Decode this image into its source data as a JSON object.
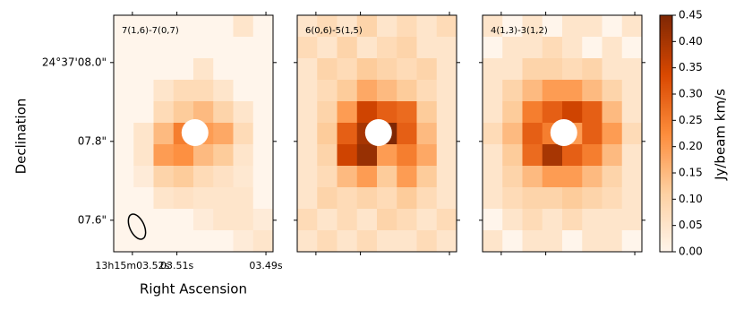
{
  "chart_data": {
    "type": "heatmap",
    "ylabel": "Declination",
    "xlabel": "Right Ascension",
    "xlim": [
      3.5242,
      3.4884
    ],
    "xticks": [
      {
        "value": 3.52,
        "label": "13h15m03.52s"
      },
      {
        "value": 3.51,
        "label": "03.51s"
      },
      {
        "value": 3.49,
        "label": "03.49s"
      }
    ],
    "ylim": [
      7.52,
      8.12
    ],
    "yticks": [
      {
        "value": 8.0,
        "label": "24°37'08.0\""
      },
      {
        "value": 7.8,
        "label": "07.8\""
      },
      {
        "value": 7.6,
        "label": "07.6\""
      }
    ],
    "clim": [
      0,
      0.45
    ],
    "cticks": [
      {
        "value": 0,
        "label": "0.00"
      },
      {
        "value": 0.05,
        "label": "0.05"
      },
      {
        "value": 0.1,
        "label": "0.10"
      },
      {
        "value": 0.15,
        "label": "0.15"
      },
      {
        "value": 0.2,
        "label": "0.20"
      },
      {
        "value": 0.25,
        "label": "0.25"
      },
      {
        "value": 0.3,
        "label": "0.30"
      },
      {
        "value": 0.35,
        "label": "0.35"
      },
      {
        "value": 0.4,
        "label": "0.40"
      },
      {
        "value": 0.45,
        "label": "0.45"
      }
    ],
    "clabel": "Jy/beam km/s",
    "colormap": [
      "#fff5eb",
      "#fdd0a2",
      "#fd8d3c",
      "#d94801",
      "#7f2704"
    ],
    "panels": [
      {
        "label": "7(1,6)-7(0,7)",
        "values": [
          [
            0,
            0,
            0,
            0,
            0,
            0,
            0.05,
            0
          ],
          [
            0,
            0,
            0,
            0,
            0,
            0,
            0,
            0
          ],
          [
            0,
            0,
            0,
            0,
            0.05,
            0,
            0,
            0
          ],
          [
            0,
            0,
            0.05,
            0.08,
            0.08,
            0.05,
            0,
            0
          ],
          [
            0,
            0,
            0.08,
            0.12,
            0.15,
            0.1,
            0.05,
            0
          ],
          [
            0,
            0.05,
            0.15,
            0.25,
            0.2,
            0.18,
            0.08,
            0
          ],
          [
            0,
            0.05,
            0.2,
            0.22,
            0.15,
            0.12,
            0.05,
            0
          ],
          [
            0,
            0.03,
            0.1,
            0.12,
            0.08,
            0.06,
            0.04,
            0
          ],
          [
            0,
            0,
            0.05,
            0.06,
            0.05,
            0.05,
            0.05,
            0
          ],
          [
            0,
            0,
            0,
            0,
            0.03,
            0.05,
            0.05,
            0.03
          ],
          [
            0,
            0,
            0,
            0,
            0,
            0,
            0.03,
            0.05
          ]
        ]
      },
      {
        "label": "6(0,6)-5(1,5)",
        "values": [
          [
            0.05,
            0.08,
            0.05,
            0.1,
            0.05,
            0.08,
            0.05,
            0.08
          ],
          [
            0.08,
            0.05,
            0.1,
            0.05,
            0.08,
            0.1,
            0.05,
            0.05
          ],
          [
            0.05,
            0.1,
            0.08,
            0.12,
            0.1,
            0.08,
            0.1,
            0.05
          ],
          [
            0.05,
            0.08,
            0.12,
            0.18,
            0.15,
            0.12,
            0.08,
            0.05
          ],
          [
            0.05,
            0.1,
            0.2,
            0.35,
            0.3,
            0.28,
            0.12,
            0.05
          ],
          [
            0.05,
            0.12,
            0.3,
            0.4,
            0.45,
            0.3,
            0.15,
            0.05
          ],
          [
            0.05,
            0.1,
            0.35,
            0.42,
            0.2,
            0.25,
            0.18,
            0.05
          ],
          [
            0.05,
            0.08,
            0.15,
            0.2,
            0.12,
            0.2,
            0.12,
            0.05
          ],
          [
            0.05,
            0.1,
            0.08,
            0.1,
            0.08,
            0.12,
            0.08,
            0.05
          ],
          [
            0.08,
            0.05,
            0.08,
            0.05,
            0.1,
            0.08,
            0.05,
            0.08
          ],
          [
            0.05,
            0.08,
            0.05,
            0.08,
            0.05,
            0.05,
            0.08,
            0.05
          ]
        ]
      },
      {
        "label": "4(1,3)-3(1,2)",
        "values": [
          [
            0.05,
            0,
            0.05,
            0,
            0.05,
            0.05,
            0,
            0.05
          ],
          [
            0,
            0.05,
            0.05,
            0.08,
            0.05,
            0,
            0.05,
            0
          ],
          [
            0.05,
            0.05,
            0.1,
            0.1,
            0.08,
            0.1,
            0.05,
            0.05
          ],
          [
            0.05,
            0.1,
            0.15,
            0.2,
            0.2,
            0.15,
            0.1,
            0.05
          ],
          [
            0.05,
            0.12,
            0.25,
            0.3,
            0.35,
            0.3,
            0.15,
            0.05
          ],
          [
            0.08,
            0.15,
            0.3,
            0.25,
            0.2,
            0.3,
            0.2,
            0.08
          ],
          [
            0.05,
            0.12,
            0.28,
            0.4,
            0.3,
            0.25,
            0.15,
            0.05
          ],
          [
            0.05,
            0.1,
            0.15,
            0.2,
            0.2,
            0.15,
            0.1,
            0.05
          ],
          [
            0.05,
            0.08,
            0.1,
            0.1,
            0.12,
            0.1,
            0.08,
            0.05
          ],
          [
            0,
            0.05,
            0.08,
            0.05,
            0.08,
            0.05,
            0.05,
            0.05
          ],
          [
            0.05,
            0,
            0.05,
            0.05,
            0,
            0.05,
            0.05,
            0
          ]
        ]
      }
    ]
  }
}
